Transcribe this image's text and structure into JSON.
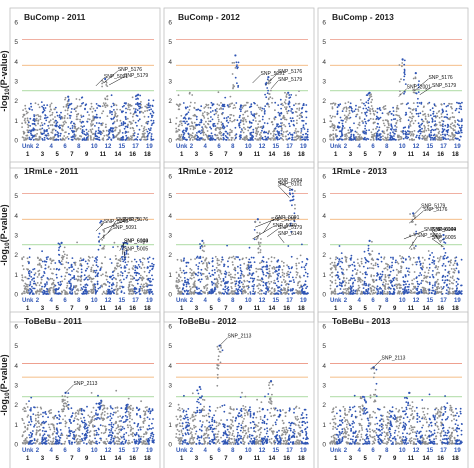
{
  "figure": {
    "ylabel_main": "-log",
    "ylabel_sub": "10",
    "ylabel_tail": "(P-value)"
  },
  "chart_data": [
    {
      "type": "scatter",
      "title": "BuComp - 2011",
      "ylim": [
        0,
        6
      ],
      "yticks": [
        "0",
        "1",
        "2",
        "3",
        "4",
        "5",
        "6"
      ],
      "thresholds": [
        {
          "value": 5.1,
          "color": "#e8806a"
        },
        {
          "value": 3.8,
          "color": "#f0a860"
        },
        {
          "value": 2.5,
          "color": "#7cc66e"
        }
      ],
      "bottom_labels": [
        "Unk",
        "2",
        "4",
        "6",
        "8",
        "10",
        "12",
        "15",
        "17",
        "19"
      ],
      "top_labels": [
        "1",
        "3",
        "5",
        "7",
        "9",
        "11",
        "14",
        "16",
        "18"
      ],
      "annotations": [
        {
          "label": "SNP_5091",
          "x": 0.56,
          "y": 2.75
        },
        {
          "label": "SNP_5176",
          "x": 0.62,
          "y": 2.9
        },
        {
          "label": "SNP_5179",
          "x": 0.66,
          "y": 2.8
        }
      ],
      "peaks": [
        {
          "x": 0.63,
          "y": 3.1
        },
        {
          "x": 0.35,
          "y": 2.2
        },
        {
          "x": 0.88,
          "y": 2.3
        }
      ]
    },
    {
      "type": "scatter",
      "title": "BuComp - 2012",
      "ylim": [
        0,
        6
      ],
      "yticks": [
        "0",
        "1",
        "2",
        "3",
        "4",
        "5",
        "6"
      ],
      "thresholds": [
        {
          "value": 5.1,
          "color": "#e8806a"
        },
        {
          "value": 3.8,
          "color": "#f0a860"
        },
        {
          "value": 2.5,
          "color": "#7cc66e"
        }
      ],
      "bottom_labels": [
        "Unk",
        "2",
        "4",
        "6",
        "8",
        "10",
        "12",
        "15",
        "17",
        "19"
      ],
      "top_labels": [
        "1",
        "3",
        "5",
        "7",
        "9",
        "11",
        "14",
        "16",
        "18"
      ],
      "annotations": [
        {
          "label": "SNP_5091",
          "x": 0.58,
          "y": 2.9
        },
        {
          "label": "SNP_5176",
          "x": 0.68,
          "y": 2.8
        },
        {
          "label": "SNP_5179",
          "x": 0.72,
          "y": 2.6
        }
      ],
      "peaks": [
        {
          "x": 0.45,
          "y": 4.3
        },
        {
          "x": 0.7,
          "y": 3.2
        },
        {
          "x": 0.85,
          "y": 2.4
        }
      ]
    },
    {
      "type": "scatter",
      "title": "BuComp - 2013",
      "ylim": [
        0,
        6
      ],
      "yticks": [
        "0",
        "1",
        "2",
        "3",
        "4",
        "5",
        "6"
      ],
      "thresholds": [
        {
          "value": 5.1,
          "color": "#e8806a"
        },
        {
          "value": 3.8,
          "color": "#f0a860"
        },
        {
          "value": 2.5,
          "color": "#7cc66e"
        }
      ],
      "bottom_labels": [
        "Unk",
        "2",
        "4",
        "6",
        "8",
        "10",
        "12",
        "15",
        "17",
        "19"
      ],
      "top_labels": [
        "1",
        "3",
        "5",
        "7",
        "9",
        "11",
        "14",
        "16",
        "18"
      ],
      "annotations": [
        {
          "label": "SNP_2001",
          "x": 0.52,
          "y": 2.2
        },
        {
          "label": "SNP_5176",
          "x": 0.64,
          "y": 2.5
        },
        {
          "label": "SNP_5179",
          "x": 0.68,
          "y": 2.3
        }
      ],
      "peaks": [
        {
          "x": 0.55,
          "y": 4.1
        },
        {
          "x": 0.65,
          "y": 3.4
        },
        {
          "x": 0.3,
          "y": 2.4
        }
      ]
    },
    {
      "type": "scatter",
      "title": "1RmLe - 2011",
      "ylim": [
        0,
        6
      ],
      "yticks": [
        "0",
        "1",
        "2",
        "3",
        "4",
        "5",
        "6"
      ],
      "thresholds": [
        {
          "value": 5.1,
          "color": "#e8806a"
        },
        {
          "value": 3.8,
          "color": "#f0a860"
        },
        {
          "value": 2.5,
          "color": "#7cc66e"
        }
      ],
      "bottom_labels": [
        "Unk",
        "2",
        "4",
        "6",
        "8",
        "10",
        "12",
        "15",
        "17",
        "19"
      ],
      "top_labels": [
        "1",
        "3",
        "5",
        "7",
        "9",
        "11",
        "14",
        "16",
        "18"
      ],
      "annotations": [
        {
          "label": "SNP_5040",
          "x": 0.56,
          "y": 3.2
        },
        {
          "label": "SNP_5091",
          "x": 0.58,
          "y": 2.7
        },
        {
          "label": "SNP_5176",
          "x": 0.62,
          "y": 3.3
        },
        {
          "label": "SNP_5179",
          "x": 0.65,
          "y": 3.1
        },
        {
          "label": "SNP_6149",
          "x": 0.74,
          "y": 2.2
        },
        {
          "label": "SNP_6004",
          "x": 0.76,
          "y": 2.0
        },
        {
          "label": "SNP_6005",
          "x": 0.78,
          "y": 1.8
        }
      ],
      "peaks": [
        {
          "x": 0.6,
          "y": 3.7
        },
        {
          "x": 0.3,
          "y": 2.6
        },
        {
          "x": 0.78,
          "y": 2.6
        }
      ]
    },
    {
      "type": "scatter",
      "title": "1RmLe - 2012",
      "ylim": [
        0,
        6
      ],
      "yticks": [
        "0",
        "1",
        "2",
        "3",
        "4",
        "5",
        "6"
      ],
      "thresholds": [
        {
          "value": 5.1,
          "color": "#e8806a"
        },
        {
          "value": 3.8,
          "color": "#f0a860"
        },
        {
          "value": 2.5,
          "color": "#7cc66e"
        }
      ],
      "bottom_labels": [
        "Unk",
        "2",
        "4",
        "6",
        "8",
        "10",
        "12",
        "15",
        "17",
        "19"
      ],
      "top_labels": [
        "1",
        "3",
        "5",
        "7",
        "9",
        "11",
        "14",
        "16",
        "18"
      ],
      "annotations": [
        {
          "label": "SNP_6094",
          "x": 0.88,
          "y": 5.3
        },
        {
          "label": "SNP_6101",
          "x": 0.86,
          "y": 4.9
        },
        {
          "label": "SNP_5091",
          "x": 0.6,
          "y": 3.4
        },
        {
          "label": "SNP_5176",
          "x": 0.66,
          "y": 3.1
        },
        {
          "label": "SNP_5179",
          "x": 0.69,
          "y": 2.9
        },
        {
          "label": "SNP_5040",
          "x": 0.58,
          "y": 2.8
        },
        {
          "label": "SNP_6149",
          "x": 0.82,
          "y": 2.6
        }
      ],
      "peaks": [
        {
          "x": 0.88,
          "y": 5.3
        },
        {
          "x": 0.62,
          "y": 3.8
        },
        {
          "x": 0.2,
          "y": 2.7
        }
      ]
    },
    {
      "type": "scatter",
      "title": "1RmLe - 2013",
      "ylim": [
        0,
        6
      ],
      "yticks": [
        "0",
        "1",
        "2",
        "3",
        "4",
        "5",
        "6"
      ],
      "thresholds": [
        {
          "value": 5.1,
          "color": "#e8806a"
        },
        {
          "value": 3.8,
          "color": "#f0a860"
        },
        {
          "value": 2.5,
          "color": "#7cc66e"
        }
      ],
      "bottom_labels": [
        "Unk",
        "2",
        "4",
        "6",
        "8",
        "10",
        "12",
        "15",
        "17",
        "19"
      ],
      "top_labels": [
        "1",
        "3",
        "5",
        "7",
        "9",
        "11",
        "14",
        "16",
        "18"
      ],
      "annotations": [
        {
          "label": "SNP_5179",
          "x": 0.63,
          "y": 4.0
        },
        {
          "label": "SNP_5176",
          "x": 0.6,
          "y": 3.6
        },
        {
          "label": "SNP_5040",
          "x": 0.56,
          "y": 2.8
        },
        {
          "label": "SNP_5091",
          "x": 0.6,
          "y": 2.3
        },
        {
          "label": "SNP_6149",
          "x": 0.82,
          "y": 2.8
        },
        {
          "label": "SNP_6004",
          "x": 0.84,
          "y": 2.6
        },
        {
          "label": "SNP_6005",
          "x": 0.86,
          "y": 2.4
        }
      ],
      "peaks": [
        {
          "x": 0.63,
          "y": 4.1
        },
        {
          "x": 0.3,
          "y": 2.7
        },
        {
          "x": 0.86,
          "y": 3.0
        }
      ]
    },
    {
      "type": "scatter",
      "title": "ToBeBu - 2011",
      "ylim": [
        0,
        6
      ],
      "yticks": [
        "0",
        "1",
        "2",
        "3",
        "4",
        "5",
        "6"
      ],
      "thresholds": [
        {
          "value": 4.1,
          "color": "#e8806a"
        },
        {
          "value": 3.4,
          "color": "#f0a860"
        },
        {
          "value": 2.4,
          "color": "#7cc66e"
        }
      ],
      "bottom_labels": [
        "Unk",
        "2",
        "4",
        "6",
        "8",
        "10",
        "12",
        "15",
        "17",
        "19"
      ],
      "top_labels": [
        "1",
        "3",
        "5",
        "7",
        "9",
        "11",
        "14",
        "16",
        "18"
      ],
      "annotations": [
        {
          "label": "SNP_2113",
          "x": 0.33,
          "y": 2.6
        }
      ],
      "peaks": [
        {
          "x": 0.33,
          "y": 2.6
        },
        {
          "x": 0.6,
          "y": 2.2
        },
        {
          "x": 0.8,
          "y": 2.0
        }
      ]
    },
    {
      "type": "scatter",
      "title": "ToBeBu - 2012",
      "ylim": [
        0,
        6
      ],
      "yticks": [
        "0",
        "1",
        "2",
        "3",
        "4",
        "5",
        "6"
      ],
      "thresholds": [
        {
          "value": 4.1,
          "color": "#e8806a"
        },
        {
          "value": 3.4,
          "color": "#f0a860"
        },
        {
          "value": 2.4,
          "color": "#7cc66e"
        }
      ],
      "bottom_labels": [
        "Unk",
        "2",
        "4",
        "6",
        "8",
        "10",
        "12",
        "15",
        "17",
        "19"
      ],
      "top_labels": [
        "1",
        "3",
        "5",
        "7",
        "9",
        "11",
        "14",
        "16",
        "18"
      ],
      "annotations": [
        {
          "label": "SNP_2113",
          "x": 0.33,
          "y": 5.0
        }
      ],
      "peaks": [
        {
          "x": 0.33,
          "y": 5.0
        },
        {
          "x": 0.72,
          "y": 3.2
        },
        {
          "x": 0.18,
          "y": 2.9
        }
      ]
    },
    {
      "type": "scatter",
      "title": "ToBeBu - 2013",
      "ylim": [
        0,
        6
      ],
      "yticks": [
        "0",
        "1",
        "2",
        "3",
        "4",
        "5",
        "6"
      ],
      "thresholds": [
        {
          "value": 4.1,
          "color": "#e8806a"
        },
        {
          "value": 3.4,
          "color": "#f0a860"
        },
        {
          "value": 2.4,
          "color": "#7cc66e"
        }
      ],
      "bottom_labels": [
        "Unk",
        "2",
        "4",
        "6",
        "8",
        "10",
        "12",
        "15",
        "17",
        "19"
      ],
      "top_labels": [
        "1",
        "3",
        "5",
        "7",
        "9",
        "11",
        "14",
        "16",
        "18"
      ],
      "annotations": [
        {
          "label": "SNP_2113",
          "x": 0.33,
          "y": 3.9
        }
      ],
      "peaks": [
        {
          "x": 0.33,
          "y": 3.9
        },
        {
          "x": 0.6,
          "y": 2.6
        },
        {
          "x": 0.25,
          "y": 2.4
        }
      ]
    }
  ],
  "colors": {
    "grey": "#8f8f8f",
    "blue": "#2f55b4",
    "border": "#bfbfbf",
    "title": "#222222"
  }
}
